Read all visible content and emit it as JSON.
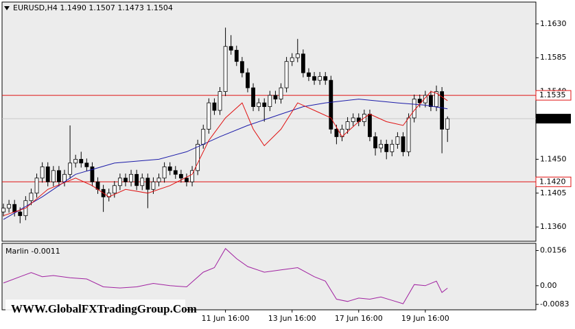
{
  "chart_data": {
    "type": "candlestick",
    "title": "EURUSD,H4  1.1490 1.1507 1.1473 1.1504",
    "watermark": "WWW.GlobalFXTradingGroup.Com",
    "candles": {
      "open": [
        1.138,
        1.1385,
        1.139,
        1.138,
        1.1375,
        1.1395,
        1.1405,
        1.1425,
        1.144,
        1.142,
        1.1435,
        1.142,
        1.143,
        1.1445,
        1.145,
        1.1445,
        1.144,
        1.142,
        1.141,
        1.14,
        1.1405,
        1.1415,
        1.1425,
        1.142,
        1.143,
        1.1415,
        1.1425,
        1.141,
        1.142,
        1.1425,
        1.144,
        1.1435,
        1.143,
        1.1425,
        1.142,
        1.1435,
        1.147,
        1.149,
        1.1525,
        1.1515,
        1.154,
        1.16,
        1.1595,
        1.158,
        1.1565,
        1.1545,
        1.152,
        1.1525,
        1.152,
        1.1535,
        1.153,
        1.1545,
        1.158,
        1.1585,
        1.159,
        1.1565,
        1.156,
        1.1555,
        1.156,
        1.1555,
        1.149,
        1.148,
        1.149,
        1.15,
        1.1505,
        1.15,
        1.151,
        1.148,
        1.1465,
        1.147,
        1.146,
        1.147,
        1.148,
        1.146,
        1.1505,
        1.153,
        1.1525,
        1.1535,
        1.152,
        1.154,
        1.149
      ],
      "high": [
        1.1391,
        1.1396,
        1.1396,
        1.1386,
        1.1401,
        1.1411,
        1.1431,
        1.1446,
        1.1446,
        1.1441,
        1.1441,
        1.1436,
        1.1495,
        1.1456,
        1.146,
        1.1451,
        1.1446,
        1.1426,
        1.1416,
        1.1411,
        1.1421,
        1.1431,
        1.1431,
        1.1436,
        1.1436,
        1.1431,
        1.1431,
        1.1426,
        1.1431,
        1.1446,
        1.1446,
        1.1441,
        1.1436,
        1.1431,
        1.1441,
        1.1476,
        1.1496,
        1.1531,
        1.1531,
        1.1546,
        1.1625,
        1.1615,
        1.1601,
        1.1586,
        1.1571,
        1.1551,
        1.1531,
        1.1531,
        1.1541,
        1.1541,
        1.1551,
        1.1586,
        1.1591,
        1.161,
        1.1596,
        1.1571,
        1.1566,
        1.1566,
        1.1566,
        1.1561,
        1.1496,
        1.1496,
        1.1506,
        1.1511,
        1.1511,
        1.1516,
        1.1516,
        1.1486,
        1.1476,
        1.1476,
        1.1476,
        1.1486,
        1.1486,
        1.1511,
        1.1536,
        1.1536,
        1.1541,
        1.1541,
        1.1548,
        1.1546,
        1.1507
      ],
      "low": [
        1.1374,
        1.1379,
        1.1374,
        1.1365,
        1.1369,
        1.1389,
        1.1399,
        1.1419,
        1.1414,
        1.1414,
        1.1414,
        1.1414,
        1.1424,
        1.1439,
        1.1439,
        1.1434,
        1.1414,
        1.1404,
        1.138,
        1.1394,
        1.1399,
        1.1409,
        1.1414,
        1.1414,
        1.1409,
        1.1409,
        1.1385,
        1.1404,
        1.1414,
        1.1419,
        1.1429,
        1.1424,
        1.1419,
        1.1414,
        1.1414,
        1.1429,
        1.1464,
        1.1484,
        1.1509,
        1.1509,
        1.1534,
        1.1589,
        1.1574,
        1.1559,
        1.1539,
        1.1514,
        1.1514,
        1.15,
        1.1514,
        1.1524,
        1.1524,
        1.1539,
        1.1574,
        1.1579,
        1.1559,
        1.1554,
        1.1549,
        1.1549,
        1.1549,
        1.1484,
        1.147,
        1.1474,
        1.1484,
        1.1494,
        1.1494,
        1.1494,
        1.1474,
        1.1455,
        1.1459,
        1.145,
        1.1454,
        1.1464,
        1.1454,
        1.1454,
        1.1499,
        1.1519,
        1.1519,
        1.1514,
        1.1514,
        1.1458,
        1.1473
      ],
      "close": [
        1.1385,
        1.139,
        1.138,
        1.1375,
        1.1395,
        1.1405,
        1.1425,
        1.144,
        1.142,
        1.1435,
        1.142,
        1.143,
        1.1445,
        1.145,
        1.1445,
        1.144,
        1.142,
        1.141,
        1.14,
        1.1405,
        1.1415,
        1.1425,
        1.142,
        1.143,
        1.1415,
        1.1425,
        1.141,
        1.142,
        1.1425,
        1.144,
        1.1435,
        1.143,
        1.1425,
        1.142,
        1.1435,
        1.147,
        1.149,
        1.1525,
        1.1515,
        1.154,
        1.16,
        1.1595,
        1.158,
        1.1565,
        1.1545,
        1.152,
        1.1525,
        1.152,
        1.1535,
        1.153,
        1.1545,
        1.158,
        1.1585,
        1.159,
        1.1565,
        1.156,
        1.1555,
        1.156,
        1.1555,
        1.149,
        1.148,
        1.149,
        1.15,
        1.1505,
        1.15,
        1.151,
        1.148,
        1.1465,
        1.147,
        1.146,
        1.147,
        1.148,
        1.146,
        1.1505,
        1.153,
        1.1525,
        1.1535,
        1.152,
        1.154,
        1.149,
        1.1504
      ]
    },
    "series": [
      {
        "color": "#1a1aa8",
        "x": [
          0,
          7,
          13,
          20,
          28,
          33,
          39,
          44,
          50,
          54,
          58,
          64,
          71,
          76,
          80
        ],
        "values": [
          1.137,
          1.14,
          1.143,
          1.1445,
          1.145,
          1.146,
          1.148,
          1.1495,
          1.151,
          1.152,
          1.1525,
          1.153,
          1.1525,
          1.1522,
          1.1517
        ]
      },
      {
        "color": "#e01010",
        "x": [
          0,
          4,
          8,
          13,
          16,
          19,
          22,
          26,
          30,
          34,
          37,
          40,
          43,
          45,
          47,
          50,
          53,
          56,
          59,
          61,
          64,
          66,
          69,
          72,
          74,
          77,
          78,
          80
        ],
        "values": [
          1.1375,
          1.1385,
          1.141,
          1.1425,
          1.1415,
          1.14,
          1.141,
          1.1405,
          1.1415,
          1.143,
          1.1475,
          1.1505,
          1.1525,
          1.149,
          1.1468,
          1.149,
          1.1525,
          1.1515,
          1.1505,
          1.148,
          1.15,
          1.151,
          1.15,
          1.1495,
          1.1515,
          1.154,
          1.1538,
          1.1528
        ]
      }
    ],
    "levels": [
      {
        "value": 1.1535,
        "label": "1.1535",
        "color": "#e01010"
      },
      {
        "value": 1.142,
        "label": "1.1420",
        "color": "#e01010"
      }
    ],
    "last_price": 1.1504,
    "xlim": [
      0,
      81
    ],
    "xticks": [
      {
        "value": 40,
        "label": "11 Jun 16:00"
      },
      {
        "value": 52,
        "label": "13 Jun 16:00"
      },
      {
        "value": 64,
        "label": "17 Jun 16:00"
      },
      {
        "value": 76,
        "label": "19 Jun 16:00"
      }
    ],
    "ylim": [
      1.1341,
      1.1659
    ],
    "yticks": [
      {
        "value": 1.163,
        "label": "1.1630"
      },
      1.1585,
      {
        "value": 1.154,
        "label": "1.1540"
      },
      {
        "value": 1.145,
        "label": "1.1450"
      },
      1.1405,
      {
        "value": 1.136,
        "label": "1.1360"
      }
    ],
    "indicator": {
      "name": "Marlin -0.0011",
      "color": "#a020a0",
      "x": [
        0,
        3,
        5,
        7,
        9,
        12,
        15,
        18,
        21,
        24,
        27,
        30,
        33,
        36,
        38,
        40,
        42,
        44,
        47,
        50,
        53,
        56,
        58,
        60,
        62,
        64,
        66,
        68,
        70,
        72,
        74,
        76,
        78,
        79,
        80
      ],
      "values": [
        0.0012,
        0.004,
        0.0058,
        0.004,
        0.0045,
        0.0035,
        0.003,
        -0.0005,
        -0.001,
        -0.0005,
        0.001,
        0.0,
        -0.0005,
        0.006,
        0.008,
        0.0165,
        0.012,
        0.0085,
        0.006,
        0.007,
        0.008,
        0.004,
        0.002,
        -0.006,
        -0.007,
        -0.0055,
        -0.006,
        -0.005,
        -0.0065,
        -0.008,
        0.0005,
        0.0,
        0.002,
        -0.003,
        -0.0011
      ],
      "ylim": [
        -0.0107,
        0.0188
      ],
      "yticks": [
        0.0156,
        {
          "value": 0,
          "label": "0.00"
        },
        -0.0083
      ]
    }
  }
}
